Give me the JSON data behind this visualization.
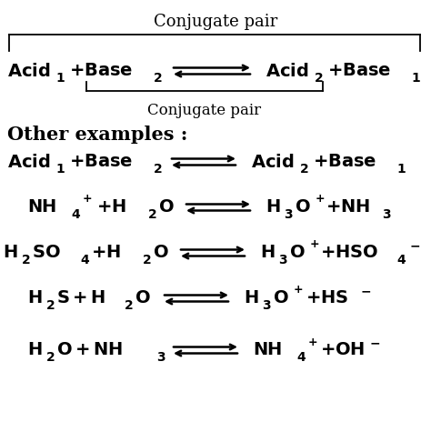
{
  "background_color": "#ffffff",
  "text_color": "#000000",
  "fig_width": 4.74,
  "fig_height": 4.75,
  "dpi": 100,
  "conjugate_pair_label": "Conjugate pair",
  "other_examples_label": "Other examples :",
  "fs_main": 13,
  "fs_label": 12,
  "fs_other": 13
}
